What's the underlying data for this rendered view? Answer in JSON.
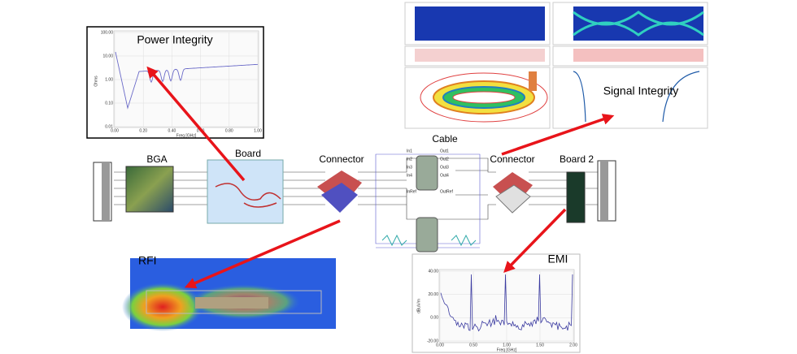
{
  "panels": {
    "power_integrity": {
      "title": "Power Integrity",
      "y_label": "Ohms",
      "x_label": "Freq [GHz]",
      "yticks": [
        "100.00",
        "10.00",
        "1.00",
        "0.10",
        "0.01"
      ],
      "xticks": [
        "0.00",
        "0.20",
        "0.40",
        "0.60",
        "0.80",
        "1.00"
      ]
    },
    "signal_integrity": {
      "title": "Signal Integrity"
    },
    "rfi": {
      "title": "RFI"
    },
    "emi": {
      "title": "EMI",
      "y_label": "dBuV/m",
      "x_label": "Freq [GHz]",
      "yticks": [
        "40.00",
        "20.00",
        "0.00",
        "-20.00"
      ],
      "xticks": [
        "0.00",
        "0.50",
        "1.00",
        "1.50",
        "2.00"
      ]
    }
  },
  "nodes": [
    {
      "label": "BGA"
    },
    {
      "label": "Board"
    },
    {
      "label": "Connector"
    },
    {
      "label": "Cable"
    },
    {
      "label": "Connector"
    },
    {
      "label": "Board 2"
    }
  ],
  "cable_pins": [
    "In1",
    "In2",
    "In3",
    "In4",
    "Out1",
    "Out2",
    "Out3",
    "Out4",
    "InRef",
    "OutRef"
  ]
}
